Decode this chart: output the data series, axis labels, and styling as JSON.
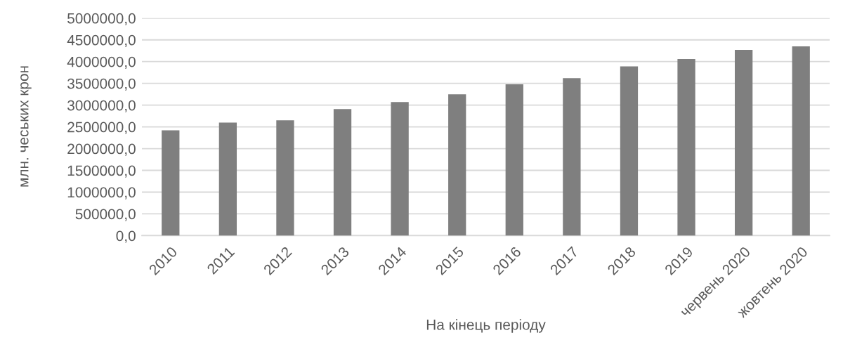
{
  "chart_data": {
    "type": "bar",
    "xlabel": "На кінець періоду",
    "ylabel": "млн. чеських крон",
    "categories": [
      "2010",
      "2011",
      "2012",
      "2013",
      "2014",
      "2015",
      "2016",
      "2017",
      "2018",
      "2019",
      "червень 2020",
      "жовтень 2020"
    ],
    "values": [
      2420000,
      2600000,
      2650000,
      2910000,
      3070000,
      3250000,
      3480000,
      3620000,
      3890000,
      4060000,
      4270000,
      4350000
    ],
    "color": "#7f7f7f",
    "ylim": [
      0,
      5000000
    ],
    "yticks": [
      {
        "value": 0,
        "label": "0,0"
      },
      {
        "value": 500000,
        "label": "500000,0"
      },
      {
        "value": 1000000,
        "label": "1000000,0"
      },
      {
        "value": 1500000,
        "label": "1500000,0"
      },
      {
        "value": 2000000,
        "label": "2000000,0"
      },
      {
        "value": 2500000,
        "label": "2500000,0"
      },
      {
        "value": 3000000,
        "label": "3000000,0"
      },
      {
        "value": 3500000,
        "label": "3500000,0"
      },
      {
        "value": 4000000,
        "label": "4000000,0"
      },
      {
        "value": 4500000,
        "label": "4500000,0"
      },
      {
        "value": 5000000,
        "label": "5000000,0"
      }
    ],
    "grid": "y"
  }
}
